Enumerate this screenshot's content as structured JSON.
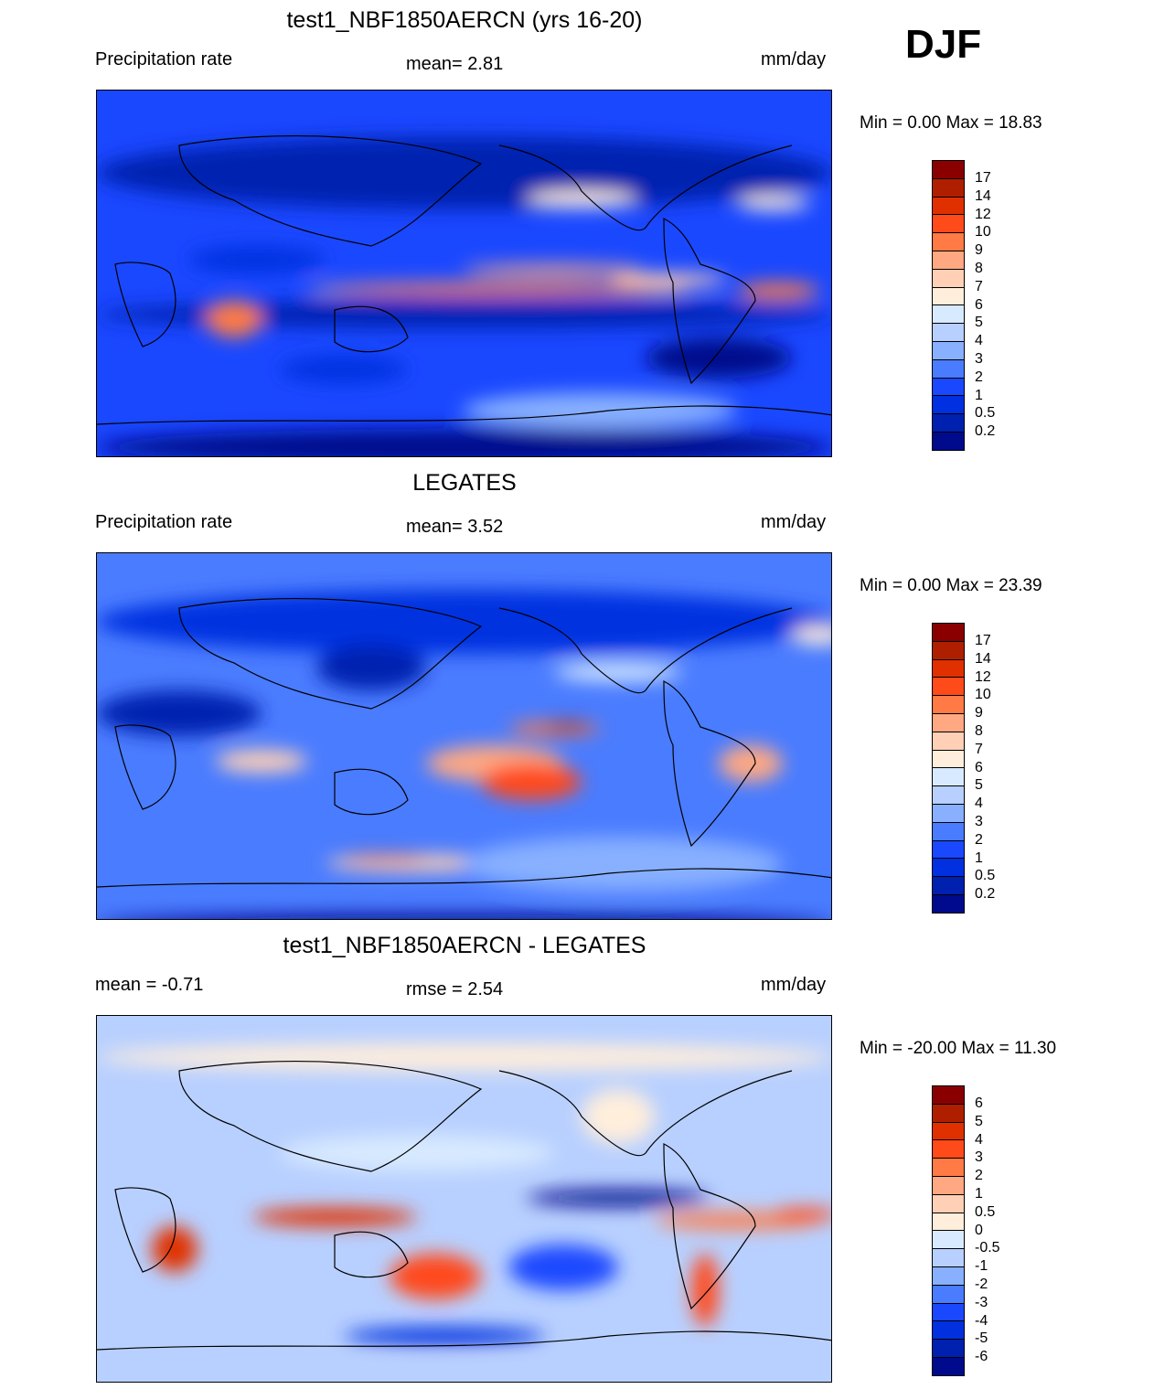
{
  "season": "DJF",
  "panels": [
    {
      "title": "test1_NBF1850AERCN (yrs 16-20)",
      "left": "Precipitation rate",
      "center": "mean=   2.81",
      "right": "mm/day",
      "minmax": "Min =    0.00 Max =  18.83",
      "kind": "model"
    },
    {
      "title": "LEGATES",
      "left": "Precipitation rate",
      "center": "mean=   3.52",
      "right": "mm/day",
      "minmax": "Min =    0.00 Max =  23.39",
      "kind": "obs"
    },
    {
      "title": "test1_NBF1850AERCN - LEGATES",
      "left": "mean =  -0.71",
      "center": "rmse =   2.54",
      "right": "mm/day",
      "minmax": "Min = -20.00 Max =  11.30",
      "kind": "diff"
    }
  ],
  "colorbar_colors": [
    "#8a0000",
    "#b01e00",
    "#e03000",
    "#ff4a1a",
    "#ff7a45",
    "#ffa882",
    "#ffd0b5",
    "#ffeedc",
    "#d8eaff",
    "#b8d0ff",
    "#88b0ff",
    "#4a7cff",
    "#1a48ff",
    "#0030e0",
    "#0020b0",
    "#000a8c"
  ],
  "colorbar_labels_precip": [
    "17",
    "14",
    "12",
    "10",
    "9",
    "8",
    "7",
    "6",
    "5",
    "4",
    "3",
    "2",
    "1",
    "0.5",
    "0.2"
  ],
  "colorbar_labels_diff": [
    "6",
    "5",
    "4",
    "3",
    "2",
    "1",
    "0.5",
    "0",
    "-0.5",
    "-1",
    "-2",
    "-3",
    "-4",
    "-5",
    "-6"
  ]
}
